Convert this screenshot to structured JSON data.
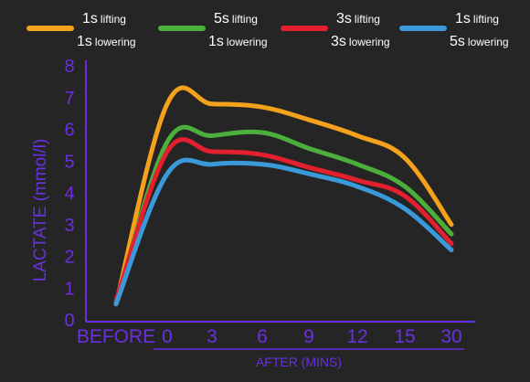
{
  "chart_data": {
    "type": "line",
    "title": "",
    "ylabel": "LACTATE (mmol/l)",
    "xlabel": "AFTER (MINS)",
    "ylim": [
      0,
      8
    ],
    "yticks": [
      "0",
      "1",
      "2",
      "3",
      "4",
      "5",
      "6",
      "7",
      "8"
    ],
    "x": [
      "BEFORE",
      "0",
      "3",
      "6",
      "9",
      "12",
      "15",
      "30"
    ],
    "grid": false,
    "legend_position": "top",
    "series": [
      {
        "legend_top_num": "1s",
        "legend_top_word": "lifting",
        "legend_bottom_num": "1s",
        "legend_bottom_word": "lowering",
        "color": "#f4a11c",
        "values": [
          0.5,
          6.8,
          6.8,
          6.7,
          6.3,
          5.8,
          5.1,
          3.0
        ]
      },
      {
        "legend_top_num": "5s",
        "legend_top_word": "lifting",
        "legend_bottom_num": "1s",
        "legend_bottom_word": "lowering",
        "color": "#4caf3c",
        "values": [
          0.5,
          5.6,
          5.8,
          5.9,
          5.4,
          4.9,
          4.2,
          2.7
        ]
      },
      {
        "legend_top_num": "3s",
        "legend_top_word": "lifting",
        "legend_bottom_num": "3s",
        "legend_bottom_word": "lowering",
        "color": "#e3202e",
        "values": [
          0.6,
          5.3,
          5.3,
          5.2,
          4.8,
          4.4,
          3.9,
          2.4
        ]
      },
      {
        "legend_top_num": "1s",
        "legend_top_word": "lifting",
        "legend_bottom_num": "5s",
        "legend_bottom_word": "lowering",
        "color": "#3a9ad9",
        "values": [
          0.5,
          4.6,
          4.9,
          4.9,
          4.6,
          4.2,
          3.5,
          2.2
        ]
      }
    ]
  }
}
